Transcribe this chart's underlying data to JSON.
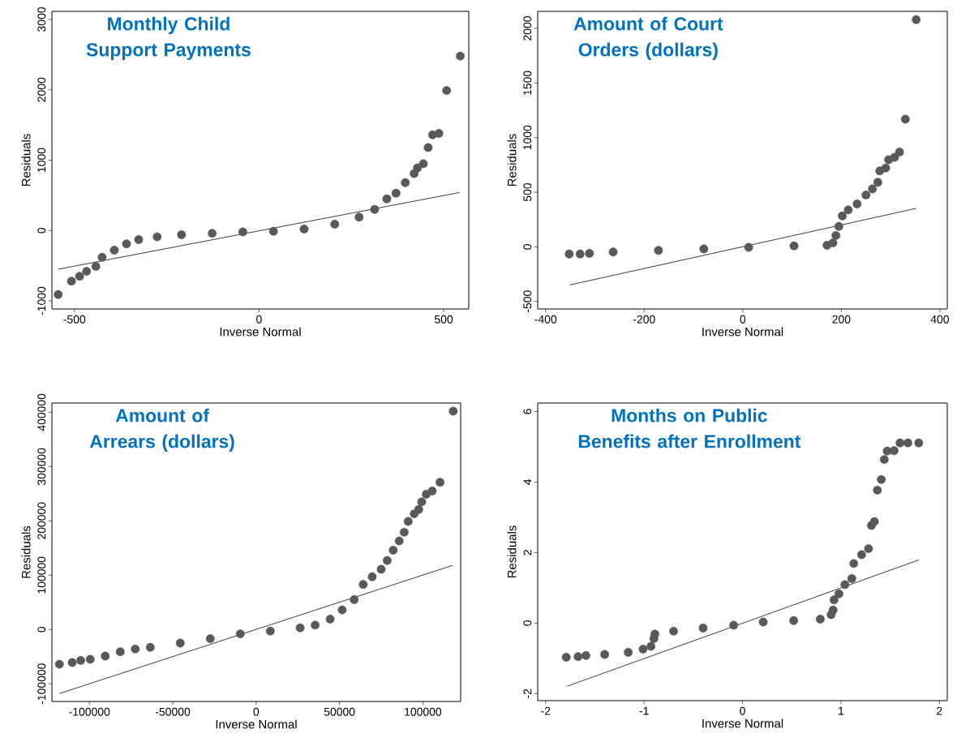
{
  "chart_data": [
    {
      "type": "scatter",
      "title": "Monthly Child Support Payments",
      "xlabel": "Inverse Normal",
      "ylabel": "Residuals",
      "xlim": [
        -561,
        568
      ],
      "ylim": [
        -1115,
        3115
      ],
      "xticks": [
        -500,
        0,
        500
      ],
      "yticks": [
        -1000,
        0,
        1000,
        2000,
        3000
      ],
      "grid": false,
      "marker": "circle",
      "series": [
        {
          "color": "#595959",
          "x": [
            -544,
            -508,
            -486,
            -467,
            -442,
            -425,
            -392,
            -359,
            -326,
            -276,
            -210,
            -127,
            -44,
            39,
            122,
            205,
            271,
            313,
            346,
            371,
            396,
            420,
            429,
            445,
            458,
            470,
            487,
            508,
            545
          ],
          "values": [
            -910,
            -720,
            -650,
            -580,
            -510,
            -380,
            -280,
            -190,
            -130,
            -90,
            -60,
            -40,
            -20,
            -10,
            20,
            90,
            190,
            300,
            450,
            530,
            680,
            810,
            890,
            950,
            1180,
            1360,
            1380,
            1990,
            2480
          ]
        },
        {
          "type": "line",
          "marker": "none",
          "color": "#262626",
          "x": [
            -544,
            543
          ],
          "values": [
            -550,
            540
          ]
        }
      ]
    },
    {
      "type": "scatter",
      "title": "Amount of Court Orders (dollars)",
      "xlabel": "Inverse Normal",
      "ylabel": "Residuals",
      "xlim": [
        -416,
        415
      ],
      "ylim": [
        -569,
        2156
      ],
      "xticks": [
        -400,
        -200,
        0,
        200,
        400
      ],
      "yticks": [
        -500,
        0,
        500,
        1000,
        1500,
        2000
      ],
      "grid": false,
      "marker": "circle",
      "series": [
        {
          "color": "#595959",
          "x": [
            -352,
            -330,
            -311,
            -263,
            -171,
            -79,
            12,
            104,
            171,
            183,
            189,
            195,
            202,
            214,
            232,
            250,
            263,
            274,
            278,
            290,
            296,
            308,
            318,
            330,
            352
          ],
          "values": [
            -66,
            -66,
            -60,
            -47,
            -33,
            -19,
            -5,
            8,
            14,
            36,
            104,
            187,
            283,
            338,
            393,
            475,
            530,
            591,
            695,
            722,
            797,
            819,
            868,
            1168,
            2080
          ]
        },
        {
          "type": "line",
          "marker": "none",
          "color": "#262626",
          "x": [
            -351,
            352
          ],
          "values": [
            -349,
            352
          ]
        }
      ]
    },
    {
      "type": "scatter",
      "title": "Amount of Arrears (dollars)",
      "xlabel": "Inverse Normal",
      "ylabel": "Residuals",
      "xlim": [
        -122480,
        122660
      ],
      "ylim": [
        -132600,
        417000
      ],
      "xticks": [
        -100000,
        -50000,
        0,
        50000,
        100000
      ],
      "yticks": [
        -100000,
        0,
        100000,
        200000,
        300000,
        400000
      ],
      "grid": false,
      "marker": "circle",
      "series": [
        {
          "color": "#595959",
          "x": [
            -118000,
            -110300,
            -105200,
            -99500,
            -90500,
            -81500,
            -72500,
            -63500,
            -45500,
            -27500,
            -9500,
            8500,
            26400,
            35400,
            44400,
            51600,
            58800,
            64200,
            69600,
            75000,
            78600,
            82200,
            85800,
            88800,
            91200,
            94800,
            97500,
            99300,
            102000,
            105600,
            110300,
            118200
          ],
          "values": [
            -64000,
            -61000,
            -57000,
            -55000,
            -49000,
            -41000,
            -36000,
            -33000,
            -25000,
            -17000,
            -8000,
            -3000,
            3000,
            8000,
            19000,
            36000,
            55000,
            83000,
            97000,
            111000,
            127000,
            146000,
            163000,
            179000,
            199000,
            213000,
            221000,
            235000,
            249000,
            255000,
            271000,
            402000
          ]
        },
        {
          "type": "line",
          "marker": "none",
          "color": "#262626",
          "x": [
            -118000,
            117800
          ],
          "values": [
            -118000,
            118000
          ]
        }
      ]
    },
    {
      "type": "scatter",
      "title": "Months on Public Benefits after Enrollment",
      "xlabel": "Inverse Normal",
      "ylabel": "Residuals",
      "xlim": [
        -2.08,
        2.08
      ],
      "ylim": [
        -2.2,
        6.24
      ],
      "xticks": [
        -2,
        -1,
        0,
        1,
        2
      ],
      "yticks": [
        -2,
        0,
        2,
        4,
        6
      ],
      "grid": false,
      "marker": "circle",
      "series": [
        {
          "color": "#595959",
          "x": [
            -1.79,
            -1.67,
            -1.59,
            -1.4,
            -1.16,
            -1.01,
            -0.93,
            -0.9,
            -0.89,
            -0.7,
            -0.4,
            -0.09,
            0.21,
            0.52,
            0.79,
            0.9,
            0.92,
            0.93,
            0.98,
            1.04,
            1.11,
            1.13,
            1.21,
            1.28,
            1.31,
            1.34,
            1.37,
            1.41,
            1.44,
            1.47,
            1.54,
            1.6,
            1.68,
            1.79
          ],
          "values": [
            -0.97,
            -0.95,
            -0.92,
            -0.89,
            -0.83,
            -0.74,
            -0.66,
            -0.44,
            -0.31,
            -0.23,
            -0.14,
            -0.06,
            0.03,
            0.07,
            0.11,
            0.24,
            0.37,
            0.66,
            0.83,
            1.09,
            1.26,
            1.69,
            1.94,
            2.11,
            2.77,
            2.88,
            3.77,
            4.07,
            4.64,
            4.88,
            4.89,
            5.11,
            5.11,
            5.11
          ]
        },
        {
          "type": "line",
          "marker": "none",
          "color": "#262626",
          "x": [
            -1.78,
            1.79
          ],
          "values": [
            -1.79,
            1.79
          ]
        }
      ]
    }
  ]
}
